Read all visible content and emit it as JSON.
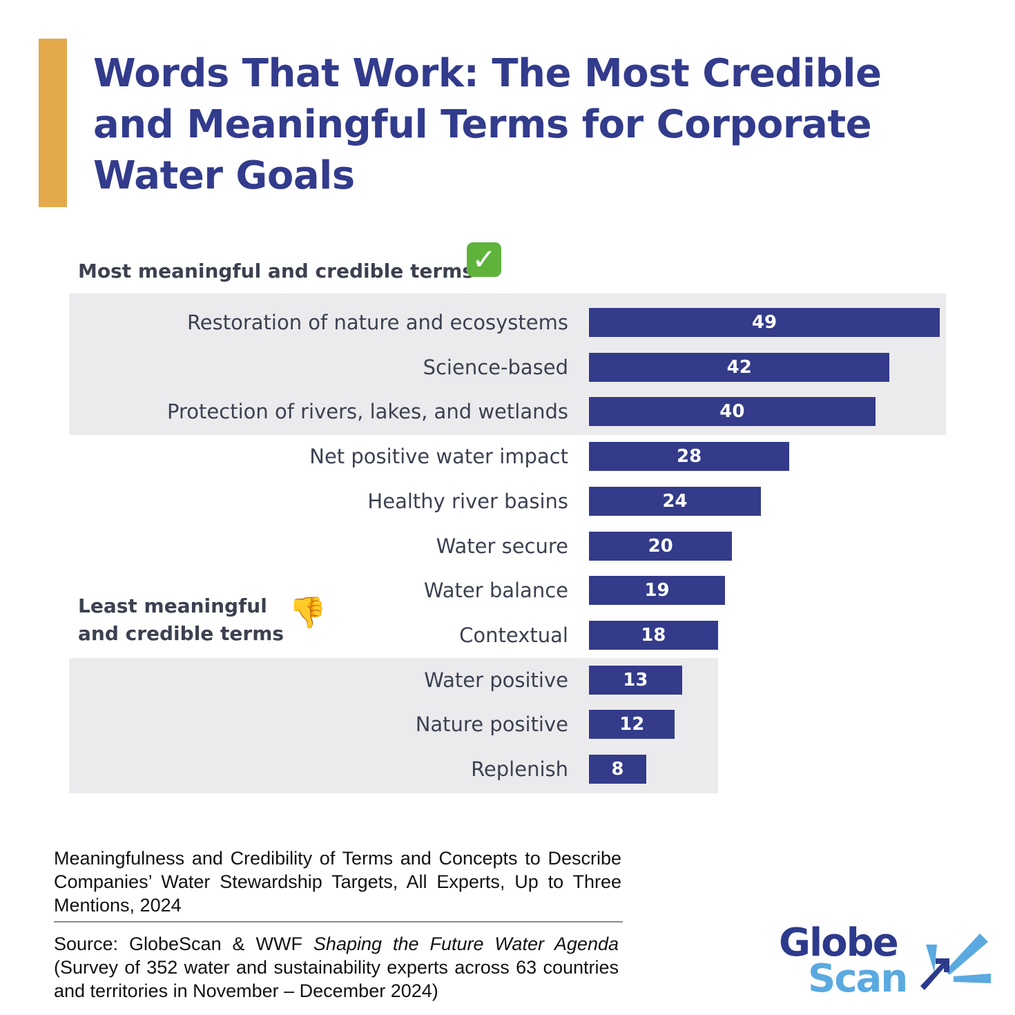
{
  "colors": {
    "accent_bar": "#e3a94a",
    "title": "#323b8c",
    "bar": "#333b8a",
    "band": "#ebebee",
    "label_text": "#3c4150",
    "logo_dark": "#2d3a8c",
    "logo_light": "#5aa9e0"
  },
  "header": {
    "title": "Words That Work: The Most Credible and Meaningful Terms for Corporate Water Goals"
  },
  "sections": {
    "most": {
      "label": "Most meaningful and credible terms",
      "icon": "check-mark-icon",
      "glyph": "✓"
    },
    "least": {
      "label_line1": "Least meaningful",
      "label_line2": "and credible terms",
      "icon": "thumbs-down-icon",
      "glyph": "👎"
    }
  },
  "chart_data": {
    "type": "bar",
    "orientation": "horizontal",
    "title": "Words That Work: The Most Credible and Meaningful Terms for Corporate Water Goals",
    "xlabel": "",
    "ylabel": "",
    "grid": false,
    "legend": null,
    "categories": [
      "Restoration of nature and ecosystems",
      "Science-based",
      "Protection of rivers, lakes, and wetlands",
      "Net positive water impact",
      "Healthy river basins",
      "Water secure",
      "Water balance",
      "Contextual",
      "Water positive",
      "Nature positive",
      "Replenish"
    ],
    "values": [
      49,
      42,
      40,
      28,
      24,
      20,
      19,
      18,
      13,
      12,
      8
    ],
    "highlight_groups": {
      "most_meaningful": [
        "Restoration of nature and ecosystems",
        "Science-based",
        "Protection of rivers, lakes, and wetlands"
      ],
      "least_meaningful": [
        "Water positive",
        "Nature positive",
        "Replenish"
      ]
    },
    "xlim": [
      0,
      49
    ]
  },
  "rows": [
    {
      "label": "Restoration of nature and ecosystems",
      "value": "49"
    },
    {
      "label": "Science-based",
      "value": "42"
    },
    {
      "label": "Protection of rivers, lakes, and wetlands",
      "value": "40"
    },
    {
      "label": "Net positive water impact",
      "value": "28"
    },
    {
      "label": "Healthy river basins",
      "value": "24"
    },
    {
      "label": "Water secure",
      "value": "20"
    },
    {
      "label": "Water balance",
      "value": "19"
    },
    {
      "label": "Contextual",
      "value": "18"
    },
    {
      "label": "Water positive",
      "value": "13"
    },
    {
      "label": "Nature positive",
      "value": "12"
    },
    {
      "label": "Replenish",
      "value": "8"
    }
  ],
  "footer": {
    "caption": "Meaningfulness and Credibility of Terms and Concepts to Describe Companies’ Water Stewardship Targets, All Experts, Up to Three Mentions, 2024",
    "source_prefix": "Source: GlobeScan & WWF ",
    "source_title": "Shaping the Future Water Agenda",
    "source_suffix": " (Survey of 352 water and sustainability experts across 63 countries and territories in November – December 2024)"
  },
  "logo": {
    "line1": "Globe",
    "line2": "Scan"
  }
}
